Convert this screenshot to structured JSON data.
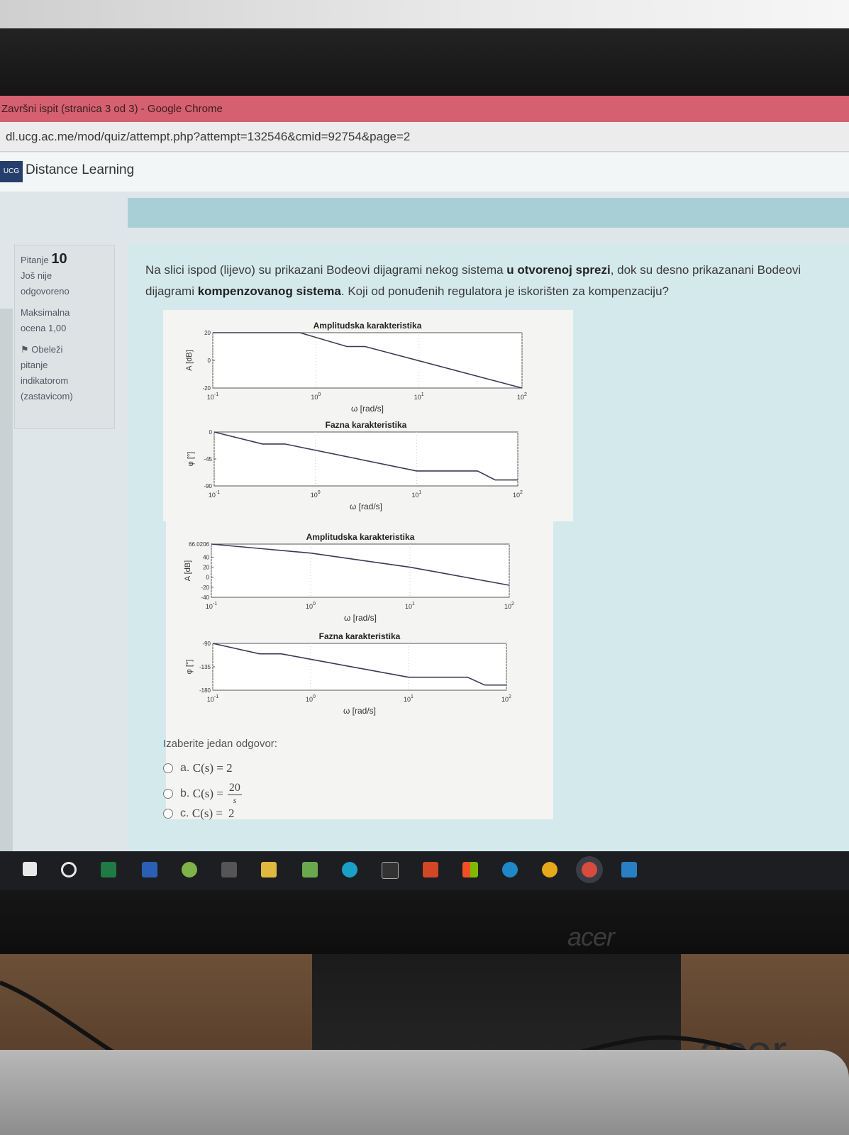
{
  "window": {
    "title": "Završni ispit (stranica 3 od 3) - Google Chrome",
    "url": "dl.ucg.ac.me/mod/quiz/attempt.php?attempt=132546&cmid=92754&page=2"
  },
  "site": {
    "name": "Distance Learning",
    "logo_text": "UCG"
  },
  "question_info": {
    "label": "Pitanje",
    "number": "10",
    "status_line1": "Još nije",
    "status_line2": "odgovoreno",
    "grade_line1": "Maksimalna",
    "grade_line2": "ocena 1,00",
    "flag_line1": "Obeleži",
    "flag_line2": "pitanje",
    "flag_line3": "indikatorom",
    "flag_line4": "(zastavicom)"
  },
  "question": {
    "text_part1": "Na slici ispod (lijevo) su prikazani Bodeovi dijagrami nekog sistema ",
    "text_bold1": "u otvorenoj sprezi",
    "text_part2": ", dok su desno prikazanani Bodeovi dijagrami ",
    "text_bold2": "kompenzovanog sistema",
    "text_part3": ". Koji od ponuđenih regulatora je iskorišten za kompenzaciju?"
  },
  "chart_data": [
    {
      "type": "line",
      "title": "Amplitudska karakteristika",
      "xlabel": "ω [rad/s]",
      "ylabel": "A [dB]",
      "xscale": "log",
      "xlim": [
        0.1,
        100
      ],
      "ylim": [
        -20,
        20
      ],
      "xticks": [
        "10^-1",
        "10^0",
        "10^1",
        "10^2"
      ],
      "yticks": [
        "-20",
        "0",
        "20"
      ],
      "x": [
        0.1,
        0.7,
        2,
        3,
        100
      ],
      "y": [
        20,
        20,
        10,
        10,
        -20
      ]
    },
    {
      "type": "line",
      "title": "Fazna karakteristika",
      "xlabel": "ω [rad/s]",
      "ylabel": "φ [°]",
      "xscale": "log",
      "xlim": [
        0.1,
        100
      ],
      "ylim": [
        -90,
        0
      ],
      "xticks": [
        "10^-1",
        "10^0",
        "10^1",
        "10^2"
      ],
      "yticks": [
        "-90",
        "-45",
        "0"
      ],
      "x": [
        0.1,
        0.3,
        0.5,
        10,
        40,
        60,
        100
      ],
      "y": [
        0,
        -20,
        -20,
        -65,
        -65,
        -80,
        -80
      ]
    },
    {
      "type": "line",
      "title": "Amplitudska karakteristika",
      "xlabel": "ω [rad/s]",
      "ylabel": "A [dB]",
      "xscale": "log",
      "xlim": [
        0.1,
        100
      ],
      "ylim": [
        -40,
        66.0206
      ],
      "xticks": [
        "10^-1",
        "10^0",
        "10^1",
        "10^2"
      ],
      "yticks": [
        "-40",
        "-20",
        "0",
        "20",
        "40",
        "66.0206"
      ],
      "x": [
        0.1,
        1,
        10,
        100
      ],
      "y": [
        66.0206,
        48,
        20,
        -16
      ]
    },
    {
      "type": "line",
      "title": "Fazna karakteristika",
      "xlabel": "ω [rad/s]",
      "ylabel": "φ [°]",
      "xscale": "log",
      "xlim": [
        0.1,
        100
      ],
      "ylim": [
        -180,
        -90
      ],
      "xticks": [
        "10^-1",
        "10^0",
        "10^1",
        "10^2"
      ],
      "yticks": [
        "-180",
        "-135",
        "-90"
      ],
      "x": [
        0.1,
        0.3,
        0.5,
        10,
        40,
        60,
        100
      ],
      "y": [
        -90,
        -110,
        -110,
        -155,
        -155,
        -170,
        -170
      ]
    }
  ],
  "answers": {
    "prompt": "Izaberite jedan odgovor:",
    "a": {
      "letter": "a.",
      "lhs": "C(s) = 2"
    },
    "b": {
      "letter": "b.",
      "lhs": "C(s) =",
      "num": "20",
      "den": "s"
    },
    "c": {
      "letter": "c.",
      "lhs": "C(s) =",
      "num": "2"
    }
  },
  "monitor": {
    "brand": "acer"
  }
}
